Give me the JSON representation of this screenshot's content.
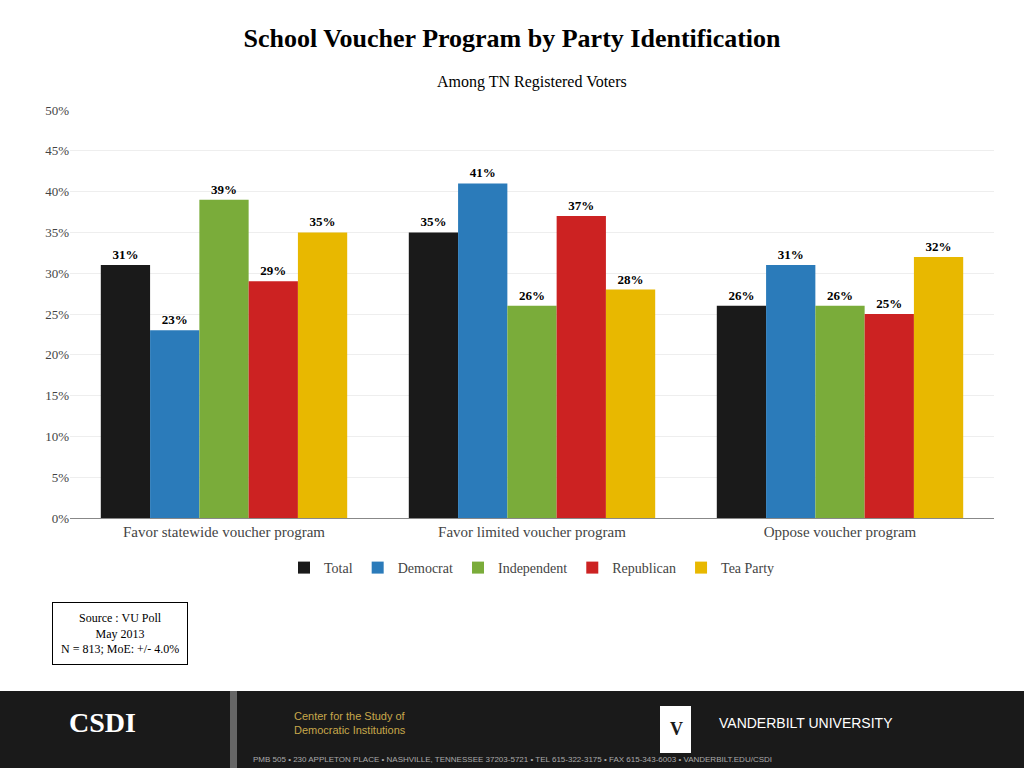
{
  "chart_data": {
    "type": "bar",
    "title": "School Voucher Program by Party Identification",
    "subtitle": "Among TN Registered Voters",
    "categories": [
      "Favor statewide voucher program",
      "Favor limited voucher program",
      "Oppose voucher program"
    ],
    "series": [
      {
        "name": "Total",
        "color": "#1a1a1a",
        "values": [
          31,
          35,
          26
        ],
        "value_labels": [
          "31%",
          "35%",
          "26%"
        ]
      },
      {
        "name": "Democrat",
        "color": "#2b7bba",
        "values": [
          23,
          41,
          31
        ],
        "value_labels": [
          "23%",
          "41%",
          "31%"
        ]
      },
      {
        "name": "Independent",
        "color": "#7aac3a",
        "values": [
          39,
          26,
          26
        ],
        "value_labels": [
          "39%",
          "26%",
          "26%"
        ]
      },
      {
        "name": "Republican",
        "color": "#cc2222",
        "values": [
          29,
          37,
          25
        ],
        "value_labels": [
          "29%",
          "37%",
          "25%"
        ]
      },
      {
        "name": "Tea Party",
        "color": "#e8b800",
        "values": [
          35,
          28,
          32
        ],
        "value_labels": [
          "35%",
          "28%",
          "32%"
        ]
      }
    ],
    "ylim": [
      0,
      50
    ],
    "yticks": [
      {
        "value": 0,
        "label": "0%"
      },
      {
        "value": 5,
        "label": "5%"
      },
      {
        "value": 10,
        "label": "10%"
      },
      {
        "value": 15,
        "label": "15%"
      },
      {
        "value": 20,
        "label": "20%"
      },
      {
        "value": 25,
        "label": "25%"
      },
      {
        "value": 30,
        "label": "30%"
      },
      {
        "value": 35,
        "label": "35%"
      },
      {
        "value": 40,
        "label": "40%"
      },
      {
        "value": 45,
        "label": "45%"
      },
      {
        "value": 50,
        "label": "50%"
      }
    ],
    "grid": true,
    "legend": "bottom",
    "data_labels": true,
    "annotations": [
      "Source : VU Poll\nMay 2013\nN = 813; MoE: +/- 4.0%",
      "CSDI",
      "Center for the Study of\nDemocratic Institutions",
      "V",
      "VANDERBILT UNIVERSITY",
      "PMB 505 • 230 APPLETON PLACE • NASHVILLE, TENNESSEE 37203-5721 • TEL 615-322-3175 • FAX 615-343-6003 • VANDERBILT.EDU/CSDI"
    ]
  }
}
